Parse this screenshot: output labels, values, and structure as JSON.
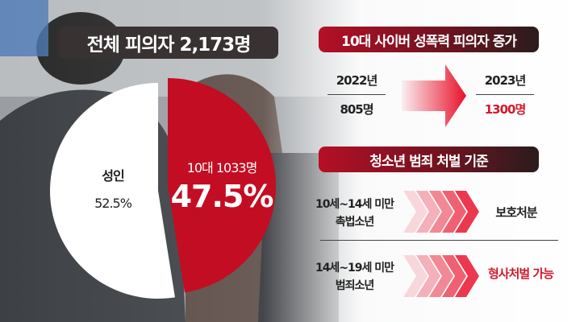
{
  "header": {
    "total_label": "전체 피의자 2,173명"
  },
  "chart_data": {
    "type": "pie",
    "title": "전체 피의자 2,173명",
    "slices": [
      {
        "label": "10대 1033명",
        "percent_label": "47.5%",
        "value": 47.5,
        "count": 1033,
        "color": "#c30d23"
      },
      {
        "label": "성인",
        "percent_label": "52.5%",
        "value": 52.5,
        "color": "#ffffff"
      }
    ]
  },
  "increase": {
    "title": "10대 사이버 성폭력 피의자 증가",
    "from": {
      "year": "2022년",
      "count": "805명"
    },
    "to": {
      "year": "2023년",
      "count": "1300명"
    }
  },
  "punishment": {
    "title": "청소년 범죄 처벌 기준",
    "rows": [
      {
        "age": "10세~14세 미만",
        "group": "촉법소년",
        "result": "보호처분",
        "highlight": false
      },
      {
        "age": "14세~19세 미만",
        "group": "범죄소년",
        "result": "형사처벌 가능",
        "highlight": true
      }
    ]
  },
  "colors": {
    "accent": "#c30d23",
    "dark": "#383233"
  }
}
